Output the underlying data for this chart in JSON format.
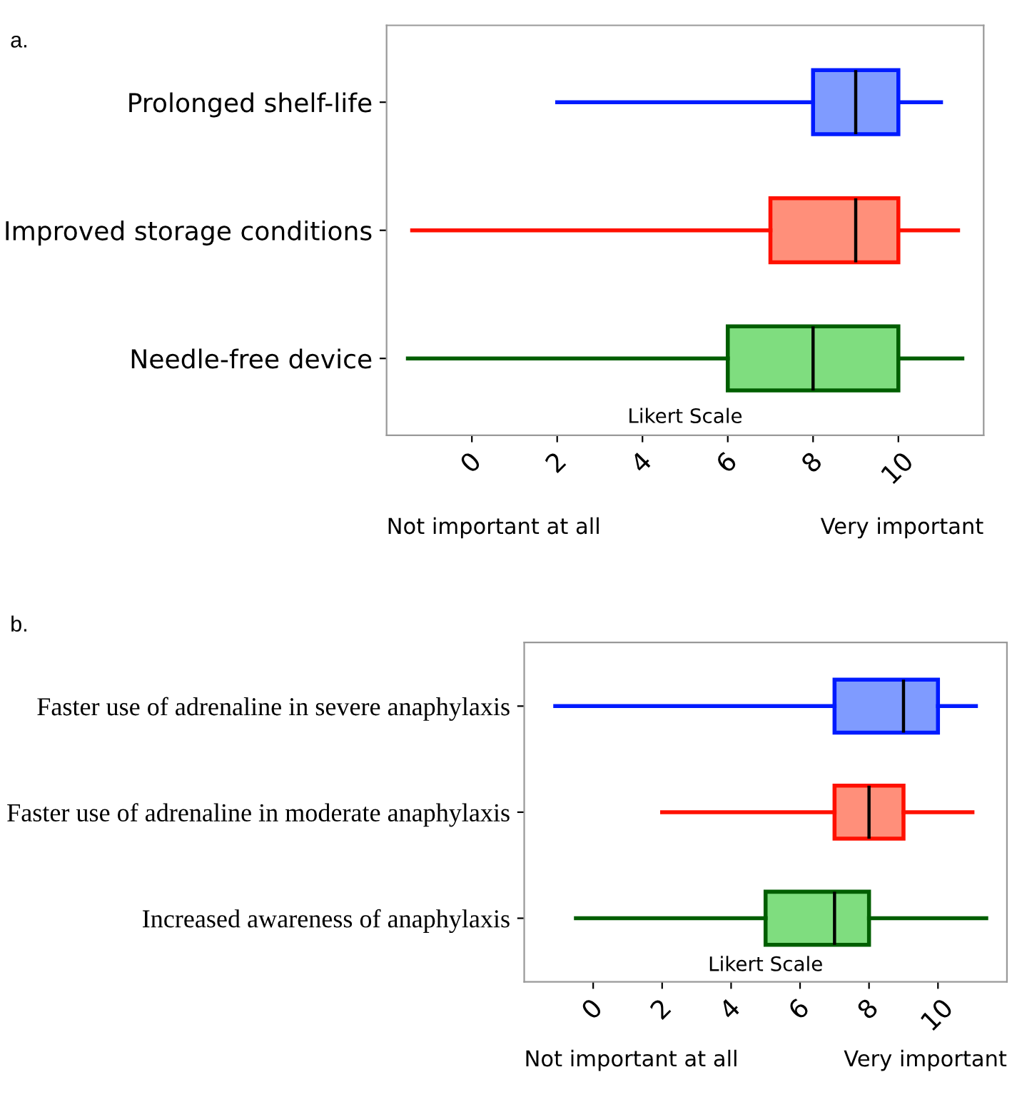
{
  "chart_data": [
    {
      "type": "box",
      "title": "a.",
      "orientation": "horizontal",
      "categories": [
        "Prolonged shelf-life",
        "Improved storage conditions",
        "Needle-free device"
      ],
      "boxes": [
        {
          "low": 2,
          "q1": 8,
          "median": 9,
          "q3": 10,
          "high": 11
        },
        {
          "low": -1.4,
          "q1": 7,
          "median": 9,
          "q3": 10,
          "high": 11.4
        },
        {
          "low": -1.5,
          "q1": 6,
          "median": 8,
          "q3": 10,
          "high": 11.5
        }
      ],
      "colors": [
        "#7f9bff",
        "#ff8f7a",
        "#7fdd7f"
      ],
      "xlim": [
        -2,
        12
      ],
      "xticks": [
        0,
        2,
        4,
        6,
        8,
        10
      ],
      "grid": false,
      "annotations": [
        "Likert Scale",
        "Not important at all",
        "Very important"
      ]
    },
    {
      "type": "box",
      "title": "b.",
      "orientation": "horizontal",
      "categories": [
        "Faster use of adrenaline in severe anaphylaxis",
        "Faster use of adrenaline in moderate anaphylaxis",
        "Increased awareness of anaphylaxis"
      ],
      "boxes": [
        {
          "low": -1.1,
          "q1": 7,
          "median": 9,
          "q3": 10,
          "high": 11.1
        },
        {
          "low": 2,
          "q1": 7,
          "median": 8,
          "q3": 9,
          "high": 11
        },
        {
          "low": -0.5,
          "q1": 5,
          "median": 7,
          "q3": 8,
          "high": 11.4
        }
      ],
      "colors": [
        "#7f9bff",
        "#ff8f7a",
        "#7fdd7f"
      ],
      "xlim": [
        -2,
        12
      ],
      "xticks": [
        0,
        2,
        4,
        6,
        8,
        10
      ],
      "grid": false,
      "annotations": [
        "Likert Scale",
        "Not important at all",
        "Very important"
      ]
    }
  ]
}
